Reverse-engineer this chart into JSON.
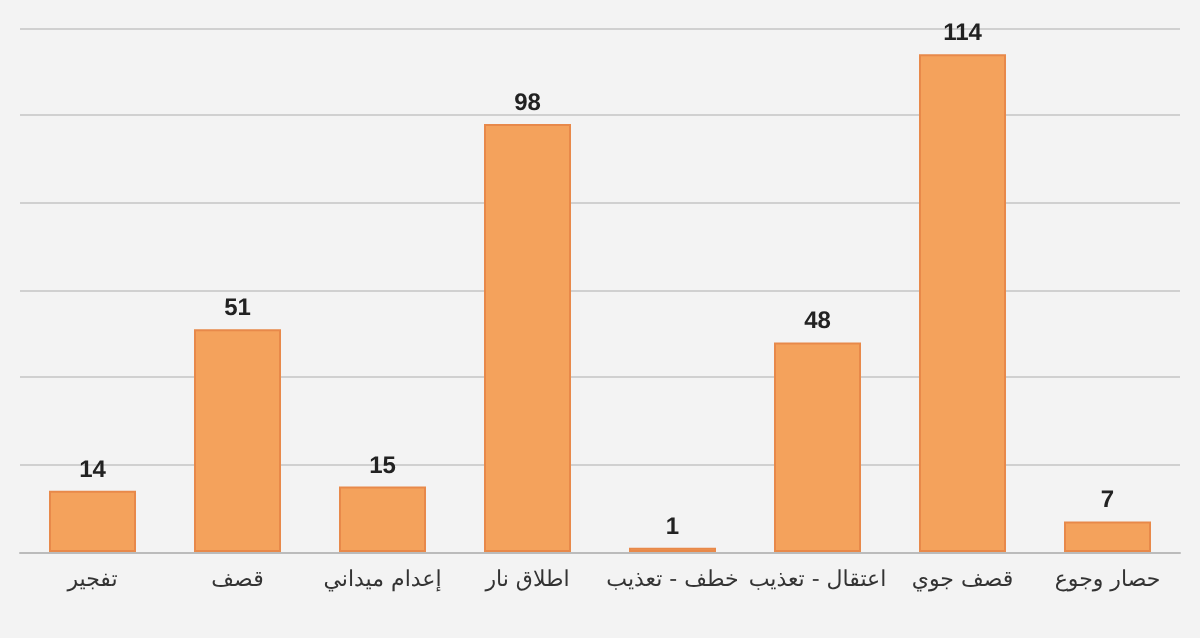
{
  "chart_data": {
    "type": "bar",
    "categories": [
      "تفجير",
      "قصف",
      "إعدام ميداني",
      "اطلاق نار",
      "خطف - تعذيب",
      "اعتقال - تعذيب",
      "قصف جوي",
      "حصار وجوع"
    ],
    "values": [
      14,
      51,
      15,
      98,
      1,
      48,
      114,
      7
    ],
    "color": "#f4a25c",
    "grid": "y",
    "data_labels": true,
    "tick_labels": "x"
  }
}
